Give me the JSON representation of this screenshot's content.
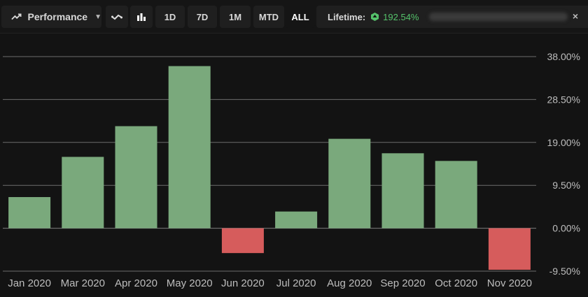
{
  "toolbar": {
    "performance_label": "Performance",
    "timeframes": [
      "1D",
      "7D",
      "1M",
      "MTD",
      "ALL"
    ],
    "active_timeframe": "ALL",
    "lifetime_label": "Lifetime:",
    "lifetime_value": "192.54%",
    "close_glyph": "×"
  },
  "colors": {
    "positive": "#7aa97c",
    "negative": "#d65c5c",
    "grid": "#8a8a8a",
    "background": "#131313",
    "lifetime_accent": "#55c26b"
  },
  "chart_data": {
    "type": "bar",
    "categories": [
      "Jan 2020",
      "Mar 2020",
      "Apr 2020",
      "May 2020",
      "Jun 2020",
      "Jul 2020",
      "Aug 2020",
      "Sep 2020",
      "Oct 2020",
      "Nov 2020"
    ],
    "values": [
      6.9,
      15.8,
      22.6,
      35.9,
      -5.5,
      3.7,
      19.8,
      16.6,
      14.9,
      -9.2
    ],
    "ylim": [
      -9.5,
      38.0
    ],
    "yticks": [
      38.0,
      28.5,
      19.0,
      9.5,
      0.0,
      -9.5
    ],
    "ytick_labels": [
      "38.00%",
      "28.50%",
      "19.00%",
      "9.50%",
      "0.00%",
      "-9.50%"
    ],
    "grid": true,
    "y_axis_position": "right",
    "title": "",
    "xlabel": "",
    "ylabel": ""
  }
}
